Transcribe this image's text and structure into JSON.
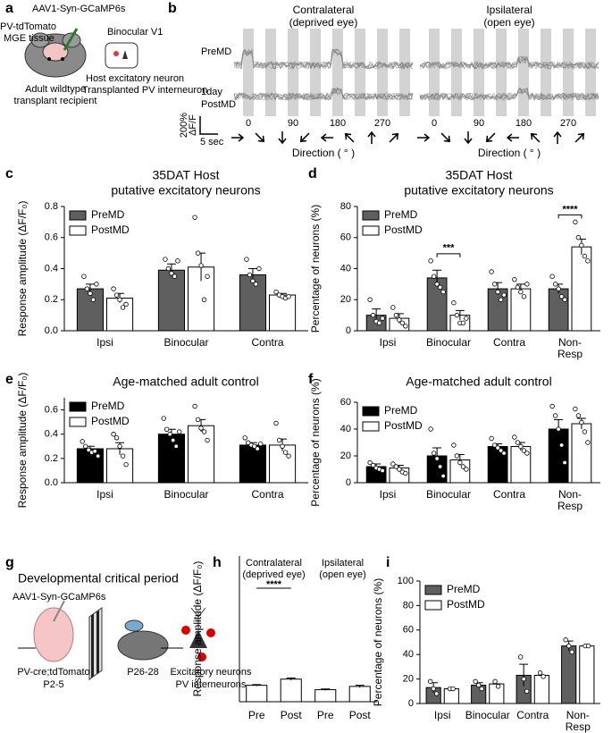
{
  "panel_labels": [
    "a",
    "b",
    "c",
    "d",
    "e",
    "f",
    "g",
    "h",
    "i"
  ],
  "diagram_a": {
    "virus": "AAV1-Syn-GCaMP6s",
    "tissue": [
      "PV-tdTomato",
      "MGE tissue"
    ],
    "region": "Binocular V1",
    "host": "Host excitatory neuron",
    "transplant": "Transplanted PV interneuron",
    "recipient": [
      "Adult wildtype",
      "transplant recipient"
    ]
  },
  "traces_b": {
    "columns": [
      [
        "Contralateral",
        "(deprived eye)"
      ],
      [
        "Ipsilateral",
        "(open eye)"
      ]
    ],
    "rows": [
      [
        "PreMD"
      ],
      [
        "1day",
        "PostMD"
      ]
    ],
    "scale_y": [
      "200%",
      "ΔF/F"
    ],
    "scale_x": "5 sec",
    "direction_ticks": [
      0,
      90,
      180,
      270
    ],
    "xlabel": "Direction ( ° )"
  },
  "diagram_g": {
    "title": "Developmental critical period",
    "virus": "AAV1-Syn-GCaMP6s",
    "mouse_pup": [
      "PV-cre;tdTomato",
      "P2-5"
    ],
    "mouse_adult": "P26-28",
    "legend": [
      "Excitatory neurons",
      "PV interneurons"
    ]
  },
  "chart_data": [
    {
      "type": "bar",
      "title": [
        "35DAT Host",
        "putative excitatory neurons"
      ],
      "ylabel": "Response amplitude (ΔF/F₀)",
      "categories": [
        "Ipsi",
        "Binocular",
        "Contra"
      ],
      "series": [
        {
          "name": "PreMD",
          "color": "#5f5f5f",
          "values": [
            0.27,
            0.39,
            0.36
          ],
          "errors": [
            0.03,
            0.04,
            0.04
          ],
          "points": [
            [
              0.35,
              0.27,
              0.24,
              0.2,
              0.3
            ],
            [
              0.46,
              0.4,
              0.37,
              0.35,
              0.45
            ],
            [
              0.46,
              0.36,
              0.32,
              0.3,
              0.4
            ]
          ]
        },
        {
          "name": "PostMD",
          "color": "#ffffff",
          "values": [
            0.21,
            0.41,
            0.23
          ],
          "errors": [
            0.03,
            0.09,
            0.01
          ],
          "points": [
            [
              0.27,
              0.23,
              0.2,
              0.15,
              0.17
            ],
            [
              0.73,
              0.5,
              0.42,
              0.2,
              0.35
            ],
            [
              0.25,
              0.23,
              0.22,
              0.21,
              0.22
            ]
          ]
        }
      ],
      "ylim": [
        0,
        0.8
      ],
      "yticks": [
        {
          "value": 0,
          "label": "0.0"
        },
        0.2,
        0.4,
        0.6,
        0.8
      ],
      "legend": "upper left"
    },
    {
      "type": "bar",
      "title": [
        "35DAT Host",
        "putative excitatory neurons"
      ],
      "ylabel": "Percentage of neurons (%)",
      "categories": [
        "Ipsi",
        "Binocular",
        "Contra",
        "Non-\nResp"
      ],
      "series": [
        {
          "name": "PreMD",
          "color": "#5f5f5f",
          "values": [
            10,
            34,
            27,
            27
          ],
          "errors": [
            4,
            5,
            4,
            3
          ],
          "points": [
            [
              20,
              10,
              6,
              5,
              8
            ],
            [
              45,
              35,
              30,
              28,
              25
            ],
            [
              38,
              30,
              25,
              20,
              23
            ],
            [
              35,
              30,
              27,
              22,
              20
            ]
          ]
        },
        {
          "name": "PostMD",
          "color": "#ffffff",
          "values": [
            8,
            10,
            27,
            54
          ],
          "errors": [
            3,
            3,
            3,
            5
          ],
          "points": [
            [
              15,
              10,
              7,
              5,
              3
            ],
            [
              18,
              10,
              5,
              5,
              8
            ],
            [
              33,
              28,
              25,
              22,
              30
            ],
            [
              70,
              60,
              55,
              48,
              45
            ]
          ]
        }
      ],
      "significance": [
        null,
        "***",
        null,
        "****"
      ],
      "ylim": [
        0,
        80
      ],
      "yticks": [
        0,
        20,
        40,
        60,
        80
      ],
      "legend": "upper left"
    },
    {
      "type": "bar",
      "title": [
        "Age-matched adult control"
      ],
      "ylabel": "Response amplitude (ΔF/F₀)",
      "categories": [
        "Ipsi",
        "Binocular",
        "Contra"
      ],
      "series": [
        {
          "name": "PreMD",
          "color": "#000000",
          "values": [
            0.28,
            0.4,
            0.31
          ],
          "errors": [
            0.02,
            0.04,
            0.02
          ],
          "points": [
            [
              0.34,
              0.3,
              0.27,
              0.25,
              0.26,
              0.22
            ],
            [
              0.53,
              0.44,
              0.4,
              0.35,
              0.3,
              0.42
            ],
            [
              0.37,
              0.33,
              0.31,
              0.3,
              0.28,
              0.32
            ]
          ]
        },
        {
          "name": "PostMD",
          "color": "#ffffff",
          "values": [
            0.28,
            0.47,
            0.31
          ],
          "errors": [
            0.05,
            0.05,
            0.05
          ],
          "points": [
            [
              0.4,
              0.37,
              0.3,
              0.22,
              0.15
            ],
            [
              0.63,
              0.52,
              0.45,
              0.42,
              0.35
            ],
            [
              0.49,
              0.35,
              0.3,
              0.25,
              0.22
            ]
          ]
        }
      ],
      "ylim": [
        0,
        0.7
      ],
      "yticks": [
        {
          "value": 0,
          "label": "0.0"
        },
        0.2,
        0.4,
        0.6
      ],
      "legend": "upper left"
    },
    {
      "type": "bar",
      "title": [
        "Age-matched adult control"
      ],
      "ylabel": "Percentage of neurons (%)",
      "categories": [
        "Ipsi",
        "Binocular",
        "Contra",
        "Non-\nResp"
      ],
      "series": [
        {
          "name": "PreMD",
          "color": "#000000",
          "values": [
            12,
            20,
            27,
            40
          ],
          "errors": [
            2,
            6,
            2,
            7
          ],
          "points": [
            [
              15,
              13,
              11,
              10,
              9
            ],
            [
              40,
              22,
              18,
              12,
              5
            ],
            [
              33,
              28,
              26,
              24,
              22
            ],
            [
              57,
              50,
              40,
              28,
              15
            ]
          ]
        },
        {
          "name": "PostMD",
          "color": "#ffffff",
          "values": [
            11,
            17,
            27,
            44
          ],
          "errors": [
            2,
            4,
            3,
            4
          ],
          "points": [
            [
              14,
              12,
              10,
              8,
              7
            ],
            [
              28,
              20,
              15,
              12,
              10
            ],
            [
              34,
              30,
              27,
              24,
              22
            ],
            [
              55,
              50,
              45,
              38,
              30
            ]
          ]
        }
      ],
      "ylim": [
        0,
        60
      ],
      "yticks": [
        0,
        20,
        40,
        60
      ],
      "legend": "upper left"
    },
    {
      "type": "bar",
      "ylabel": "Response amplitude (ΔF/F₀)",
      "groups": [
        [
          "Contralateral",
          "(deprived eye)"
        ],
        [
          "Ipsilateral",
          "(open eye)"
        ]
      ],
      "significance": [
        "****",
        null
      ],
      "categories": [
        "Pre",
        "Post",
        "Pre",
        "Post"
      ],
      "values": [
        0.45,
        0.62,
        0.33,
        0.42
      ],
      "errors": [
        0.02,
        0.03,
        0.02,
        0.03
      ],
      "color": "#ffffff",
      "ylim": [
        0,
        4
      ]
    },
    {
      "type": "bar",
      "ylabel": "Percentage of neurons (%)",
      "categories": [
        "Ipsi",
        "Binocular",
        "Contra",
        "Non-\nResp"
      ],
      "series": [
        {
          "name": "PreMD",
          "color": "#5f5f5f",
          "values": [
            13,
            15,
            23,
            47
          ],
          "errors": [
            4,
            2,
            9,
            4
          ],
          "points": [
            [
              18,
              12,
              8
            ],
            [
              18,
              15,
              12
            ],
            [
              38,
              20,
              10
            ],
            [
              52,
              47,
              42
            ]
          ]
        },
        {
          "name": "PostMD",
          "color": "#ffffff",
          "values": [
            12,
            16,
            23,
            47
          ],
          "errors": [
            0,
            0,
            0,
            0
          ],
          "points": [
            [
              12,
              12
            ],
            [
              18,
              14
            ],
            [
              25,
              22
            ],
            [
              47,
              47
            ]
          ]
        }
      ],
      "ylim": [
        0,
        100
      ],
      "yticks": [
        0,
        20,
        40,
        60,
        80,
        100
      ],
      "legend": "upper left"
    }
  ]
}
